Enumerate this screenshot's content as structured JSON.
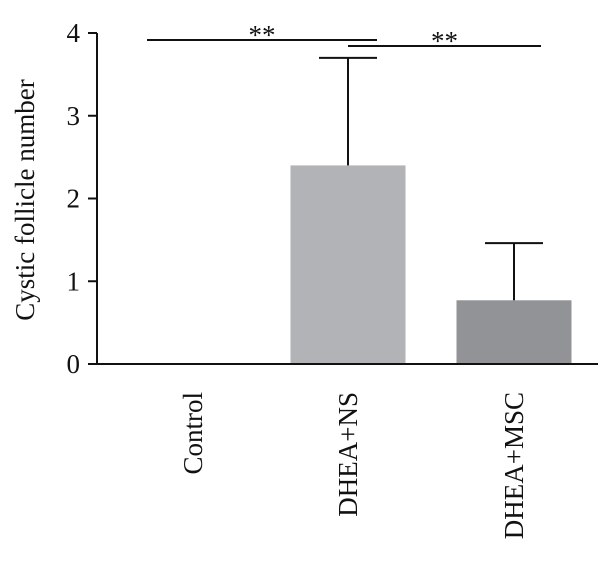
{
  "chart_data": {
    "type": "bar",
    "title": "",
    "xlabel": "",
    "ylabel": "Cystic follicle number",
    "ylim": [
      0,
      4
    ],
    "yticks": [
      0,
      1,
      2,
      3,
      4
    ],
    "categories": [
      "Control",
      "DHEA+NS",
      "DHEA+MSC"
    ],
    "values": [
      0,
      2.4,
      0.77
    ],
    "error_upper": [
      0,
      1.3,
      0.69
    ],
    "bar_colors": [
      "#a8aaad",
      "#b1b3b6",
      "#919396"
    ],
    "significance": [
      {
        "from": "Control",
        "to": "DHEA+NS",
        "label": "**"
      },
      {
        "from": "DHEA+NS",
        "to": "DHEA+MSC",
        "label": "**"
      }
    ],
    "grid": false,
    "legend": "none"
  }
}
